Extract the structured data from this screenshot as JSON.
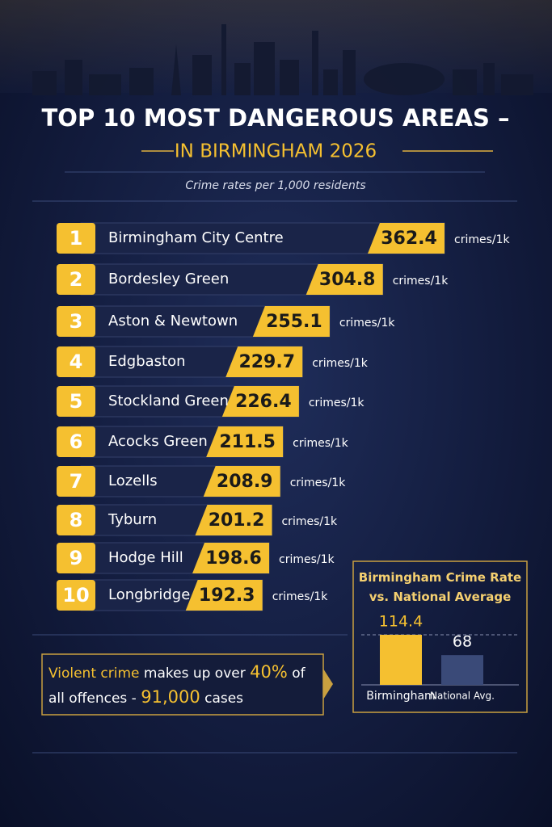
{
  "header": {
    "title_line1": "TOP 10 MOST DANGEROUS AREAS –",
    "title_line2": "IN BIRMINGHAM 2026",
    "subtitle": "Crime rates per 1,000 residents"
  },
  "chart_data": [
    {
      "type": "ranking",
      "ranks": [
        1,
        2,
        3,
        4,
        5,
        6,
        7,
        8,
        9,
        10
      ],
      "categories": [
        "Birmingham City Centre",
        "Bordesley Green",
        "Aston & Newtown",
        "Edgbaston",
        "Stockland Green",
        "Acocks Green",
        "Lozells",
        "Tyburn",
        "Hodge Hill",
        "Longbridge"
      ],
      "values": [
        362.4,
        304.8,
        255.1,
        229.7,
        226.4,
        211.5,
        208.9,
        201.2,
        198.6,
        192.3
      ],
      "unit": "crimes/1k",
      "color": "#f5c030"
    },
    {
      "type": "bar",
      "title": "Birmingham Crime Rate vs. National Average",
      "categories": [
        "Birmingham",
        "National Avg."
      ],
      "values": [
        114.4,
        68
      ],
      "colors": [
        "#f5c030",
        "#3a4a78"
      ]
    }
  ],
  "callout": {
    "parts": [
      "Violent crime",
      " makes up over ",
      "40%",
      " of all offences - ",
      "91,000",
      " cases"
    ]
  }
}
